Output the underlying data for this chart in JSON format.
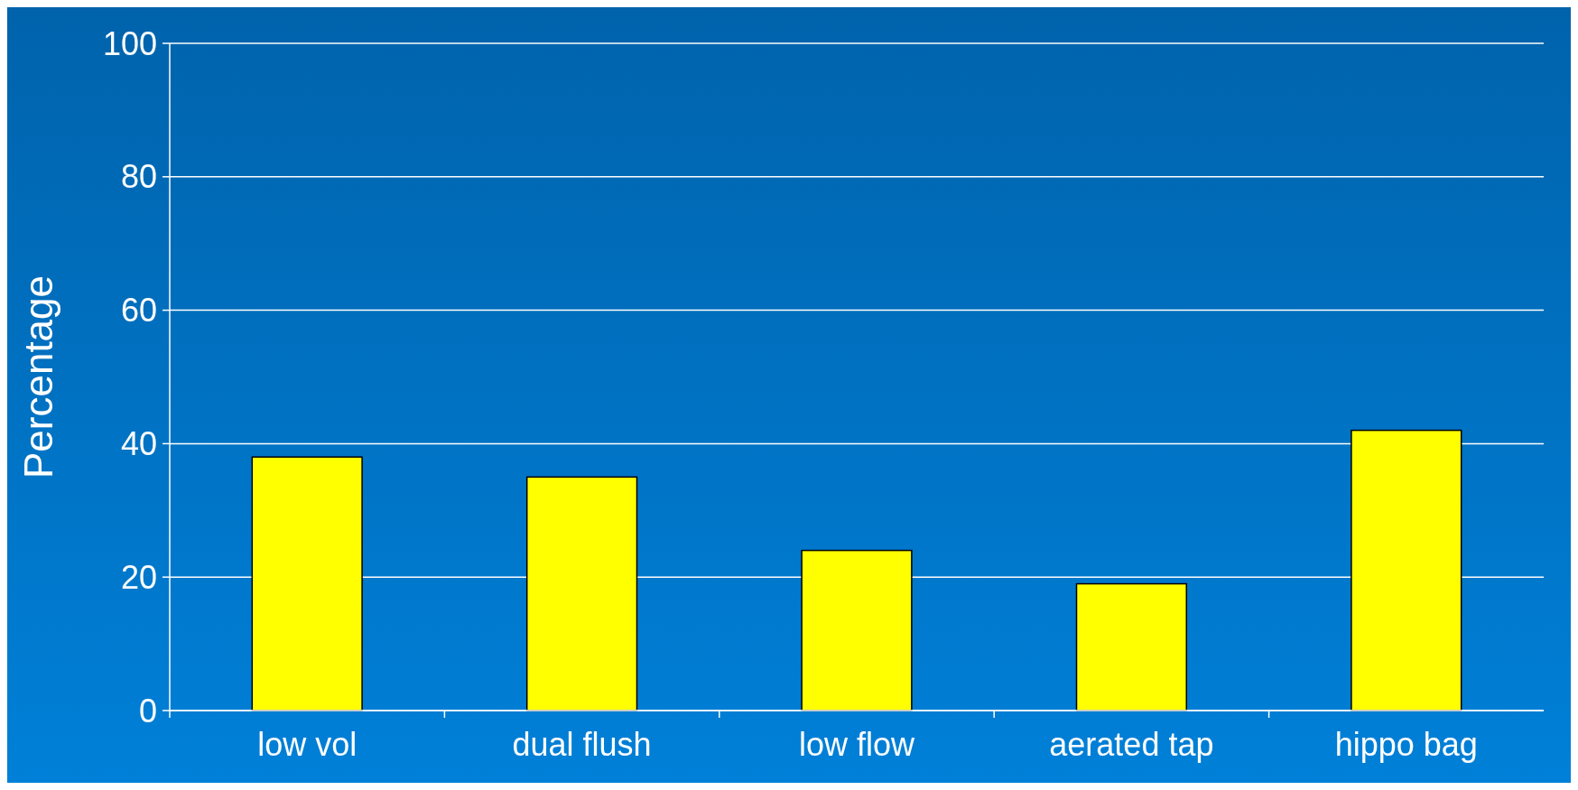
{
  "chart_data": {
    "type": "bar",
    "ylabel": "Percentage",
    "categories": [
      "low vol",
      "dual flush",
      "low flow",
      "aerated tap",
      "hippo bag"
    ],
    "values": [
      38,
      35,
      24,
      19,
      42
    ],
    "color": "#ffff00",
    "ylim": [
      0,
      100
    ],
    "yticks": [
      0,
      20,
      40,
      60,
      80,
      100
    ],
    "grid": "y"
  }
}
